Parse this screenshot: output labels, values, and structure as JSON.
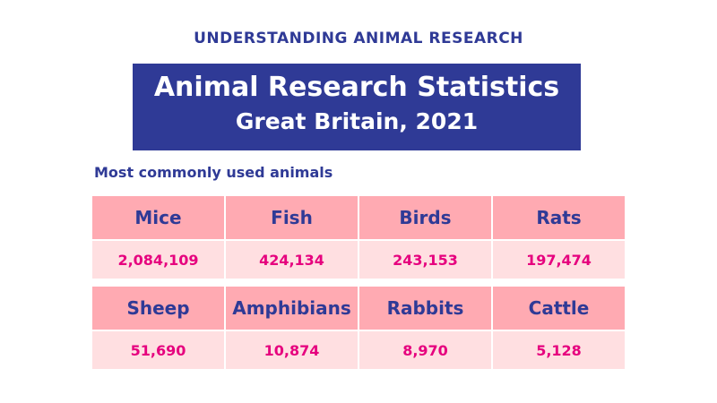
{
  "organization": "UNDERSTANDING ANIMAL RESEARCH",
  "title": "Animal Research Statistics",
  "subtitle": "Great Britain, 2021",
  "section_label": "Most commonly used animals",
  "colors": {
    "blue": "#2f3a96",
    "header_pink": "#ffaab2",
    "value_pink": "#ffdfe1",
    "value_text": "#e6007e"
  },
  "animals": [
    {
      "name": "Mice",
      "count": "2,084,109"
    },
    {
      "name": "Fish",
      "count": "424,134"
    },
    {
      "name": "Birds",
      "count": "243,153"
    },
    {
      "name": "Rats",
      "count": "197,474"
    },
    {
      "name": "Sheep",
      "count": "51,690"
    },
    {
      "name": "Amphibians",
      "count": "10,874"
    },
    {
      "name": "Rabbits",
      "count": "8,970"
    },
    {
      "name": "Cattle",
      "count": "5,128"
    }
  ]
}
